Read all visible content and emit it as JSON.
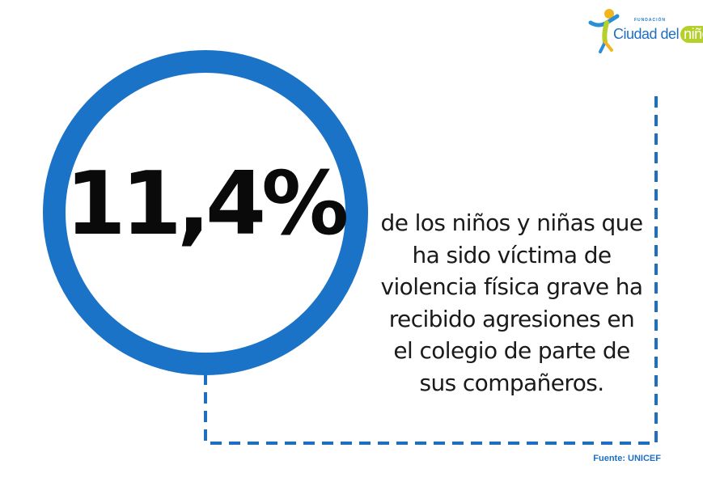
{
  "colors": {
    "ring": "#1a73c6",
    "dash": "#1f6fc1",
    "stat_text": "#0a0a0a",
    "source_text": "#1f6fc1"
  },
  "stat": {
    "value": "11,4%"
  },
  "description": {
    "lines": [
      "de los niños y niñas que",
      "ha sido víctima de",
      "violencia física grave ha",
      "recibido agresiones en",
      "el colegio de parte de",
      "sus compañeros."
    ]
  },
  "source": {
    "label": "Fuente: UNICEF"
  },
  "logo": {
    "foundation": "FUNDACIÓN",
    "name_main": "Ciudad del",
    "name_accent": "niño",
    "icon": "child-figure-icon"
  }
}
